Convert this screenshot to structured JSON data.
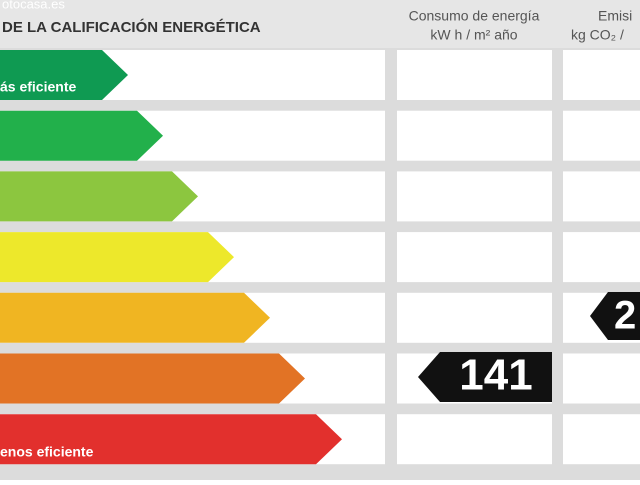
{
  "header": {
    "watermark": "otocasa.es",
    "title": "DE LA CALIFICACIÓN ENERGÉTICA"
  },
  "columns": {
    "consumption": {
      "title": "Consumo de energía",
      "unit": "kW h  / m² año"
    },
    "emissions": {
      "title": "Emisi",
      "unit": "kg CO₂  /"
    }
  },
  "scale": {
    "top_label": "ás eficiente",
    "bottom_label": "enos eficiente"
  },
  "ratings": {
    "consumption": "141",
    "emissions": "2"
  }
}
